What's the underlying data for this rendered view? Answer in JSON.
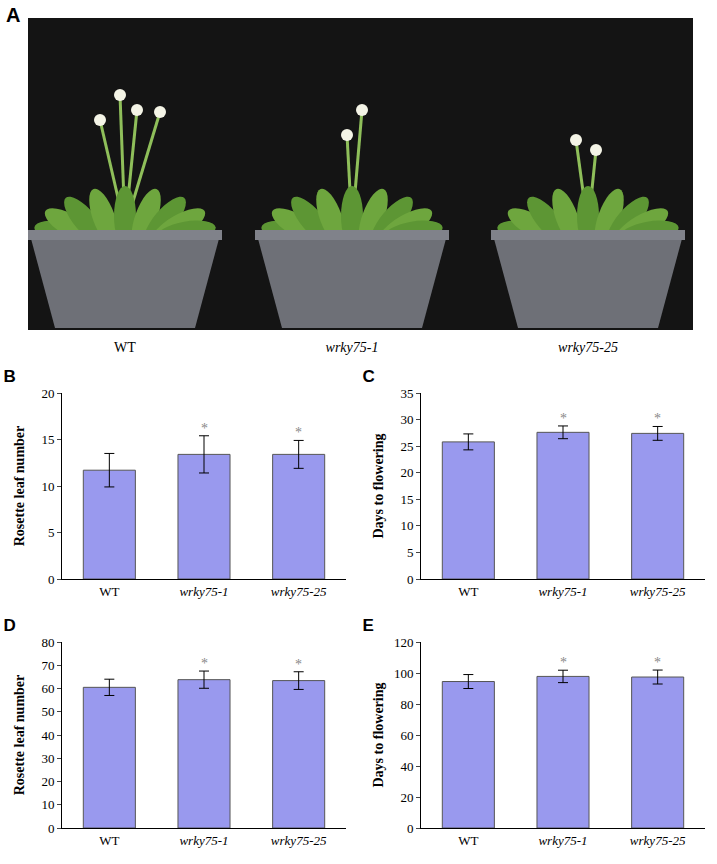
{
  "photo": {
    "panel": "A",
    "labels": [
      "WT",
      "wrky75-1",
      "wrky75-25"
    ]
  },
  "chart_data": [
    {
      "type": "bar",
      "title": "B",
      "y_label": "Rosette leaf number",
      "categories": [
        "WT",
        "wrky75-1",
        "wrky75-25"
      ],
      "values": [
        11.7,
        13.4,
        13.4
      ],
      "errors": [
        1.8,
        2.0,
        1.5
      ],
      "significance": [
        null,
        "*",
        "*"
      ],
      "color": "#9999ee",
      "ylim": [
        0,
        20
      ],
      "yticks": [
        0,
        5,
        10,
        15,
        20
      ],
      "grid": false
    },
    {
      "type": "bar",
      "title": "C",
      "y_label": "Days to flowering",
      "categories": [
        "WT",
        "wrky75-1",
        "wrky75-25"
      ],
      "values": [
        25.8,
        27.6,
        27.4
      ],
      "errors": [
        1.5,
        1.2,
        1.3
      ],
      "significance": [
        null,
        "*",
        "*"
      ],
      "color": "#9999ee",
      "ylim": [
        0,
        35
      ],
      "yticks": [
        0,
        5,
        10,
        15,
        20,
        25,
        30,
        35
      ],
      "grid": false
    },
    {
      "type": "bar",
      "title": "D",
      "y_label": "Rosette leaf number",
      "categories": [
        "WT",
        "wrky75-1",
        "wrky75-25"
      ],
      "values": [
        60.5,
        63.8,
        63.4
      ],
      "errors": [
        3.5,
        3.7,
        3.8
      ],
      "significance": [
        null,
        "*",
        "*"
      ],
      "color": "#9999ee",
      "ylim": [
        0,
        80
      ],
      "yticks": [
        0,
        10,
        20,
        30,
        40,
        50,
        60,
        70,
        80
      ],
      "grid": false
    },
    {
      "type": "bar",
      "title": "E",
      "y_label": "Days to flowering",
      "categories": [
        "WT",
        "wrky75-1",
        "wrky75-25"
      ],
      "values": [
        94.5,
        97.8,
        97.4
      ],
      "errors": [
        4.5,
        4.0,
        4.5
      ],
      "significance": [
        null,
        "*",
        "*"
      ],
      "color": "#9999ee",
      "ylim": [
        0,
        120
      ],
      "yticks": [
        0,
        20,
        40,
        60,
        80,
        100,
        120
      ],
      "grid": false
    }
  ]
}
